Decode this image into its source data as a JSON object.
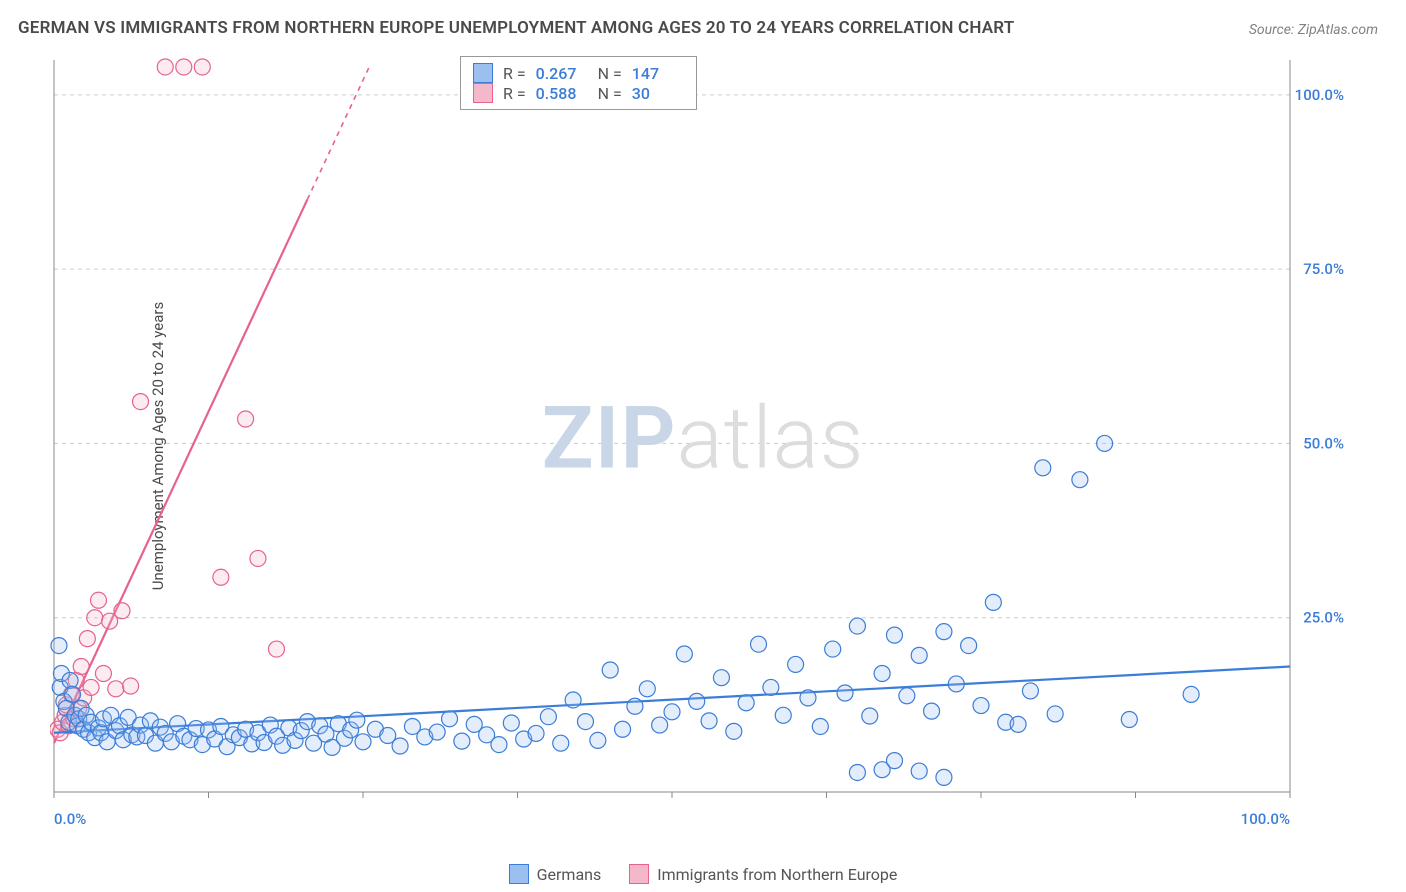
{
  "title": "GERMAN VS IMMIGRANTS FROM NORTHERN EUROPE UNEMPLOYMENT AMONG AGES 20 TO 24 YEARS CORRELATION CHART",
  "source": "Source: ZipAtlas.com",
  "ylabel": "Unemployment Among Ages 20 to 24 years",
  "watermark": {
    "part1": "ZIP",
    "part2": "atlas"
  },
  "chart": {
    "type": "scatter",
    "background_color": "#ffffff",
    "grid_color": "#cccccc",
    "axis_color": "#888888",
    "xlim": [
      0,
      100
    ],
    "ylim": [
      0,
      105
    ],
    "x_ticks": [
      0,
      12.5,
      25,
      37.5,
      50,
      62.5,
      75,
      87.5,
      100
    ],
    "x_tick_labels": {
      "0": "0.0%",
      "100": "100.0%"
    },
    "y_ticks": [
      25,
      50,
      75,
      100
    ],
    "y_tick_labels": {
      "25": "25.0%",
      "50": "50.0%",
      "75": "75.0%",
      "100": "100.0%"
    },
    "marker_radius": 8,
    "marker_stroke_width": 1.2,
    "marker_fill_opacity": 0.28,
    "trend_line_width": 2.2,
    "trend_dash_width": 1.6,
    "series": [
      {
        "id": "germans",
        "label": "Germans",
        "R": "0.267",
        "N": "147",
        "color_stroke": "#3b7dd8",
        "color_fill": "#9bc0ef",
        "trend": {
          "x1": 0,
          "y1": 8.5,
          "x2": 100,
          "y2": 18.0
        },
        "points": [
          [
            0.4,
            21
          ],
          [
            0.5,
            15
          ],
          [
            0.6,
            17
          ],
          [
            0.8,
            13
          ],
          [
            1.0,
            12
          ],
          [
            1.2,
            10
          ],
          [
            1.3,
            16
          ],
          [
            1.5,
            14
          ],
          [
            1.7,
            11
          ],
          [
            1.9,
            9.5
          ],
          [
            2.0,
            10.5
          ],
          [
            2.2,
            12
          ],
          [
            2.4,
            9
          ],
          [
            2.6,
            11
          ],
          [
            2.8,
            8.5
          ],
          [
            3.0,
            10
          ],
          [
            3.3,
            7.8
          ],
          [
            3.6,
            9.2
          ],
          [
            3.8,
            8.5
          ],
          [
            4.0,
            10.5
          ],
          [
            4.3,
            7.2
          ],
          [
            4.6,
            11
          ],
          [
            5.0,
            8.8
          ],
          [
            5.3,
            9.5
          ],
          [
            5.6,
            7.5
          ],
          [
            6.0,
            10.7
          ],
          [
            6.3,
            8.2
          ],
          [
            6.7,
            7.9
          ],
          [
            7.0,
            9.6
          ],
          [
            7.4,
            8.1
          ],
          [
            7.8,
            10.2
          ],
          [
            8.2,
            7.0
          ],
          [
            8.6,
            9.3
          ],
          [
            9.0,
            8.4
          ],
          [
            9.5,
            7.2
          ],
          [
            10,
            9.8
          ],
          [
            10.5,
            8.0
          ],
          [
            11,
            7.5
          ],
          [
            11.5,
            9.1
          ],
          [
            12,
            6.8
          ],
          [
            12.5,
            8.9
          ],
          [
            13,
            7.6
          ],
          [
            13.5,
            9.4
          ],
          [
            14,
            6.5
          ],
          [
            14.5,
            8.2
          ],
          [
            15,
            7.8
          ],
          [
            15.5,
            9.0
          ],
          [
            16,
            6.9
          ],
          [
            16.5,
            8.5
          ],
          [
            17,
            7.1
          ],
          [
            17.5,
            9.6
          ],
          [
            18,
            8.0
          ],
          [
            18.5,
            6.7
          ],
          [
            19,
            9.2
          ],
          [
            19.5,
            7.4
          ],
          [
            20,
            8.8
          ],
          [
            20.5,
            10.1
          ],
          [
            21,
            7.0
          ],
          [
            21.5,
            9.5
          ],
          [
            22,
            8.3
          ],
          [
            22.5,
            6.4
          ],
          [
            23,
            9.8
          ],
          [
            23.5,
            7.7
          ],
          [
            24,
            8.9
          ],
          [
            24.5,
            10.3
          ],
          [
            25,
            7.2
          ],
          [
            26,
            9.0
          ],
          [
            27,
            8.1
          ],
          [
            28,
            6.6
          ],
          [
            29,
            9.4
          ],
          [
            30,
            7.9
          ],
          [
            31,
            8.6
          ],
          [
            32,
            10.5
          ],
          [
            33,
            7.3
          ],
          [
            34,
            9.7
          ],
          [
            35,
            8.2
          ],
          [
            36,
            6.8
          ],
          [
            37,
            9.9
          ],
          [
            38,
            7.6
          ],
          [
            39,
            8.4
          ],
          [
            40,
            10.8
          ],
          [
            41,
            7.0
          ],
          [
            42,
            13.2
          ],
          [
            43,
            10.1
          ],
          [
            44,
            7.4
          ],
          [
            45,
            17.5
          ],
          [
            46,
            9.0
          ],
          [
            47,
            12.3
          ],
          [
            48,
            14.8
          ],
          [
            49,
            9.6
          ],
          [
            50,
            11.5
          ],
          [
            51,
            19.8
          ],
          [
            52,
            13.0
          ],
          [
            53,
            10.2
          ],
          [
            54,
            16.4
          ],
          [
            55,
            8.7
          ],
          [
            56,
            12.8
          ],
          [
            57,
            21.2
          ],
          [
            58,
            15.0
          ],
          [
            59,
            11.0
          ],
          [
            60,
            18.3
          ],
          [
            61,
            13.5
          ],
          [
            62,
            9.4
          ],
          [
            63,
            20.5
          ],
          [
            64,
            14.2
          ],
          [
            65,
            23.8
          ],
          [
            66,
            10.9
          ],
          [
            67,
            17.0
          ],
          [
            68,
            22.5
          ],
          [
            69,
            13.8
          ],
          [
            70,
            19.6
          ],
          [
            71,
            11.6
          ],
          [
            72,
            23.0
          ],
          [
            73,
            15.5
          ],
          [
            74,
            21.0
          ],
          [
            75,
            12.4
          ],
          [
            76,
            27.2
          ],
          [
            77,
            10.0
          ],
          [
            78,
            9.7
          ],
          [
            79,
            14.5
          ],
          [
            80,
            46.5
          ],
          [
            81,
            11.2
          ],
          [
            83,
            44.8
          ],
          [
            85,
            50.0
          ],
          [
            87,
            10.4
          ],
          [
            92,
            14.0
          ],
          [
            65,
            2.8
          ],
          [
            67,
            3.2
          ],
          [
            68,
            4.5
          ],
          [
            70,
            3.0
          ],
          [
            72,
            2.1
          ]
        ]
      },
      {
        "id": "immigrants",
        "label": "Immigrants from Northern Europe",
        "R": "0.588",
        "N": "30",
        "color_stroke": "#e6638b",
        "color_fill": "#f5b8cb",
        "trend_solid": {
          "x1": 0,
          "y1": 7,
          "x2": 20.5,
          "y2": 85
        },
        "trend_dashed": {
          "x1": 20.5,
          "y1": 85,
          "x2": 25.5,
          "y2": 104
        },
        "points": [
          [
            0.3,
            9
          ],
          [
            0.5,
            8.5
          ],
          [
            0.7,
            10
          ],
          [
            0.9,
            11
          ],
          [
            1.0,
            12.5
          ],
          [
            1.2,
            9.5
          ],
          [
            1.4,
            14
          ],
          [
            1.6,
            10.5
          ],
          [
            1.8,
            16
          ],
          [
            2.0,
            12
          ],
          [
            2.2,
            18
          ],
          [
            2.4,
            13.5
          ],
          [
            2.7,
            22
          ],
          [
            3.0,
            15
          ],
          [
            3.3,
            25
          ],
          [
            3.6,
            27.5
          ],
          [
            4.0,
            17
          ],
          [
            4.5,
            24.5
          ],
          [
            5.0,
            14.8
          ],
          [
            5.5,
            26
          ],
          [
            6.2,
            15.2
          ],
          [
            7.0,
            56.0
          ],
          [
            9.0,
            104
          ],
          [
            10.5,
            104
          ],
          [
            12.0,
            104
          ],
          [
            13.5,
            30.8
          ],
          [
            15.5,
            53.5
          ],
          [
            16.5,
            33.5
          ],
          [
            18.0,
            20.5
          ]
        ]
      }
    ]
  },
  "legend_bottom": [
    {
      "swatch_fill": "#9bc0ef",
      "swatch_stroke": "#3b7dd8",
      "label": "Germans"
    },
    {
      "swatch_fill": "#f5b8cb",
      "swatch_stroke": "#e6638b",
      "label": "Immigrants from Northern Europe"
    }
  ]
}
